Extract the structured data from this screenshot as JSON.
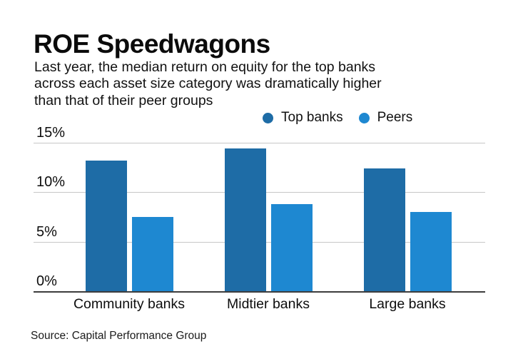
{
  "header": {
    "title": "ROE Speedwagons",
    "subtitle": "Last year, the median return on equity for the top banks\nacross each asset size category was dramatically higher\nthan that of their peer groups"
  },
  "legend": [
    {
      "label": "Top banks",
      "color": "#1e6ca6"
    },
    {
      "label": "Peers",
      "color": "#1e88d1"
    }
  ],
  "source": "Source: Capital Performance Group",
  "colors": {
    "top_banks": "#1e6ca6",
    "peers": "#1e88d1",
    "gridline": "#c7c7c7",
    "axis": "#3d3d3d",
    "text": "#111111"
  },
  "chart_data": {
    "type": "bar",
    "title": "ROE Speedwagons",
    "subtitle": "Last year, the median return on equity for the top banks across each asset size category was dramatically higher than that of their peer groups",
    "categories": [
      "Community banks",
      "Midtier banks",
      "Large banks"
    ],
    "series": [
      {
        "name": "Top banks",
        "color": "#1e6ca6",
        "values": [
          13.2,
          14.4,
          12.4
        ]
      },
      {
        "name": "Peers",
        "color": "#1e88d1",
        "values": [
          7.5,
          8.8,
          8.0
        ]
      }
    ],
    "unit": "%",
    "xlabel": "",
    "ylabel": "",
    "ylim": [
      0,
      15
    ],
    "yticks": [
      {
        "label": "0%",
        "value": 0
      },
      {
        "label": "5%",
        "value": 5
      },
      {
        "label": "10%",
        "value": 10
      },
      {
        "label": "15%",
        "value": 15
      }
    ],
    "grid": true,
    "legend_position": "top",
    "source": "Source: Capital Performance Group"
  }
}
